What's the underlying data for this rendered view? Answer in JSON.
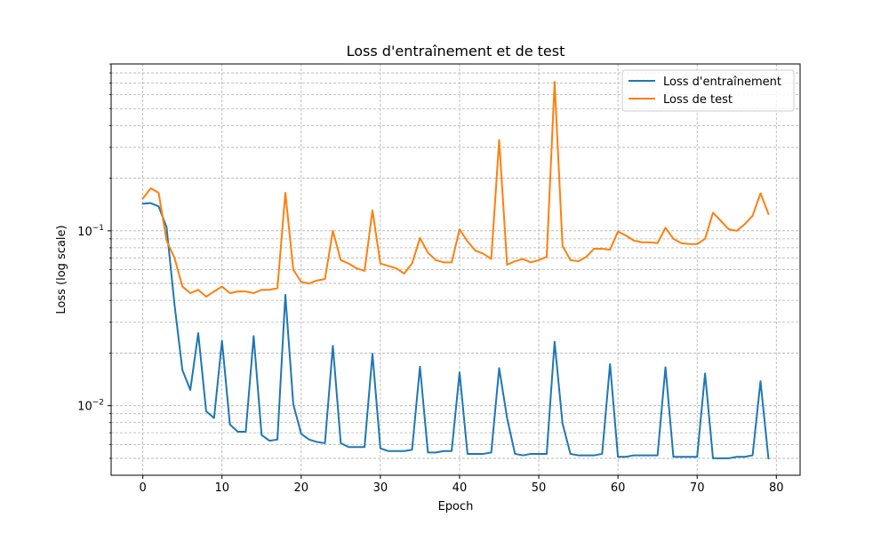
{
  "chart_data": {
    "type": "line",
    "title": "Loss d'entraînement et de test",
    "xlabel": "Epoch",
    "ylabel": "Loss (log scale)",
    "yscale": "log",
    "xlim": [
      -4,
      83
    ],
    "ylim": [
      0.004,
      0.9
    ],
    "x_ticks": [
      0,
      10,
      20,
      30,
      40,
      50,
      60,
      70,
      80
    ],
    "x_tick_labels": [
      "0",
      "10",
      "20",
      "30",
      "40",
      "50",
      "60",
      "70",
      "80"
    ],
    "y_major_ticks": [
      0.01,
      0.1
    ],
    "y_major_labels": [
      {
        "base": "10",
        "exp": "−2"
      },
      {
        "base": "10",
        "exp": "−1"
      }
    ],
    "y_minor_ticks": [
      0.005,
      0.006,
      0.007,
      0.008,
      0.009,
      0.02,
      0.03,
      0.04,
      0.05,
      0.06,
      0.07,
      0.08,
      0.09,
      0.2,
      0.3,
      0.4,
      0.5,
      0.6,
      0.7,
      0.8,
      0.9
    ],
    "grid": true,
    "legend_position": "top-right",
    "x": [
      0,
      1,
      2,
      3,
      4,
      5,
      6,
      7,
      8,
      9,
      10,
      11,
      12,
      13,
      14,
      15,
      16,
      17,
      18,
      19,
      20,
      21,
      22,
      23,
      24,
      25,
      26,
      27,
      28,
      29,
      30,
      31,
      32,
      33,
      34,
      35,
      36,
      37,
      38,
      39,
      40,
      41,
      42,
      43,
      44,
      45,
      46,
      47,
      48,
      49,
      50,
      51,
      52,
      53,
      54,
      55,
      56,
      57,
      58,
      59,
      60,
      61,
      62,
      63,
      64,
      65,
      66,
      67,
      68,
      69,
      70,
      71,
      72,
      73,
      74,
      75,
      76,
      77,
      78,
      79
    ],
    "series": [
      {
        "name": "Loss d'entraînement",
        "color": "#1f77b4",
        "values": [
          0.143,
          0.144,
          0.138,
          0.105,
          0.038,
          0.016,
          0.0123,
          0.026,
          0.0093,
          0.0085,
          0.0235,
          0.0078,
          0.0071,
          0.0071,
          0.025,
          0.0068,
          0.0063,
          0.0064,
          0.043,
          0.0102,
          0.0069,
          0.0064,
          0.0062,
          0.0061,
          0.022,
          0.0061,
          0.0058,
          0.0058,
          0.0058,
          0.0198,
          0.0057,
          0.0055,
          0.0055,
          0.0055,
          0.0056,
          0.0167,
          0.0054,
          0.0054,
          0.0055,
          0.0055,
          0.0155,
          0.0053,
          0.0053,
          0.0053,
          0.0054,
          0.0164,
          0.0085,
          0.0053,
          0.0052,
          0.0053,
          0.0053,
          0.0053,
          0.0232,
          0.0079,
          0.0053,
          0.0052,
          0.0052,
          0.0052,
          0.0053,
          0.0173,
          0.0051,
          0.0051,
          0.0052,
          0.0052,
          0.0052,
          0.0052,
          0.0166,
          0.0051,
          0.0051,
          0.0051,
          0.0051,
          0.0153,
          0.005,
          0.005,
          0.005,
          0.0051,
          0.0051,
          0.0052,
          0.0138,
          0.005
        ]
      },
      {
        "name": "Loss de test",
        "color": "#ff7f0e",
        "values": [
          0.153,
          0.175,
          0.165,
          0.088,
          0.07,
          0.048,
          0.044,
          0.046,
          0.042,
          0.045,
          0.048,
          0.044,
          0.045,
          0.045,
          0.044,
          0.046,
          0.046,
          0.047,
          0.165,
          0.06,
          0.051,
          0.05,
          0.052,
          0.053,
          0.1,
          0.068,
          0.065,
          0.061,
          0.059,
          0.131,
          0.065,
          0.063,
          0.061,
          0.057,
          0.065,
          0.091,
          0.075,
          0.068,
          0.066,
          0.066,
          0.102,
          0.087,
          0.077,
          0.074,
          0.069,
          0.33,
          0.064,
          0.067,
          0.069,
          0.066,
          0.068,
          0.071,
          0.71,
          0.082,
          0.068,
          0.067,
          0.071,
          0.079,
          0.079,
          0.078,
          0.099,
          0.094,
          0.088,
          0.086,
          0.086,
          0.085,
          0.104,
          0.09,
          0.085,
          0.084,
          0.084,
          0.09,
          0.127,
          0.114,
          0.102,
          0.1,
          0.109,
          0.122,
          0.164,
          0.125
        ]
      }
    ]
  }
}
